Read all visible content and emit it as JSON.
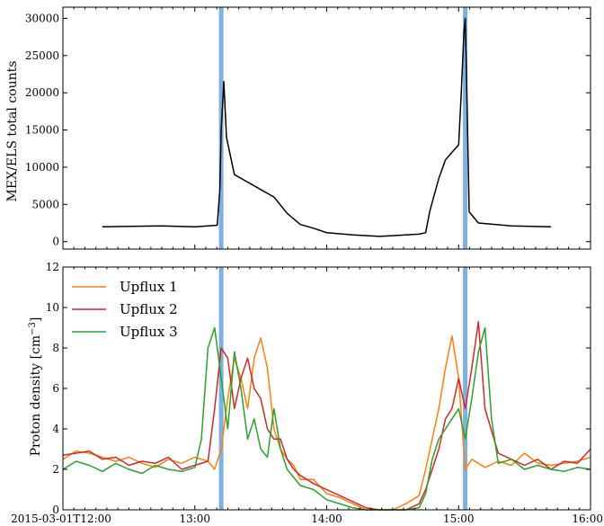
{
  "chart_data": [
    {
      "type": "line",
      "ylabel": "MEX/ELS total counts",
      "ylim": [
        -1000,
        31500
      ],
      "yticks": [
        0,
        5000,
        10000,
        15000,
        20000,
        25000,
        30000
      ],
      "xlim_hours": [
        12.0,
        16.0
      ],
      "highlight_bands_hours": [
        13.2,
        15.05
      ],
      "band_color": "#6fa8dc",
      "line_color": "#000000",
      "series": [
        {
          "x_hours": [
            12.3,
            12.5,
            12.75,
            13.0,
            13.1,
            13.17,
            13.19,
            13.2,
            13.22,
            13.24,
            13.3,
            13.4,
            13.5,
            13.6,
            13.7,
            13.8,
            13.9,
            14.0,
            14.2,
            14.4,
            14.5,
            14.6,
            14.7,
            14.75,
            14.78,
            14.85,
            14.9,
            14.95,
            15.0,
            15.02,
            15.04,
            15.05,
            15.06,
            15.08,
            15.15,
            15.4,
            15.7
          ],
          "values": [
            2000,
            2050,
            2100,
            2000,
            2100,
            2200,
            7000,
            15000,
            21500,
            14000,
            9000,
            8000,
            7000,
            6000,
            3800,
            2300,
            1800,
            1200,
            900,
            700,
            800,
            900,
            1000,
            1200,
            4000,
            8500,
            11000,
            12000,
            13000,
            20000,
            28000,
            30000,
            22000,
            4000,
            2500,
            2100,
            2000
          ]
        }
      ]
    },
    {
      "type": "line",
      "ylabel": "Proton density [cm$^{-3}$]",
      "ylim": [
        0,
        12
      ],
      "yticks": [
        0,
        2,
        4,
        6,
        8,
        10,
        12
      ],
      "xlim_hours": [
        12.0,
        16.0
      ],
      "x_tick_labels": [
        "2015-03-01T12:00",
        "13:00",
        "14:00",
        "15:00",
        "16:00"
      ],
      "highlight_bands_hours": [
        13.2,
        15.05
      ],
      "band_color": "#6fa8dc",
      "legend_position": "top-left",
      "series": [
        {
          "name": "Upflux 1",
          "color": "#ff7f0e",
          "x_hours": [
            12.0,
            12.1,
            12.2,
            12.3,
            12.4,
            12.5,
            12.6,
            12.7,
            12.8,
            12.9,
            13.0,
            13.1,
            13.15,
            13.2,
            13.25,
            13.3,
            13.35,
            13.4,
            13.45,
            13.5,
            13.55,
            13.6,
            13.65,
            13.7,
            13.75,
            13.8,
            13.9,
            14.0,
            14.1,
            14.2,
            14.3,
            14.4,
            14.5,
            14.6,
            14.7,
            14.75,
            14.8,
            14.85,
            14.9,
            14.95,
            15.0,
            15.05,
            15.1,
            15.2,
            15.3,
            15.4,
            15.5,
            15.6,
            15.7,
            15.8,
            15.9,
            16.0
          ],
          "values": [
            2.5,
            2.9,
            2.8,
            2.6,
            2.4,
            2.6,
            2.3,
            2.1,
            2.5,
            2.3,
            2.6,
            2.4,
            2.0,
            3.0,
            5.5,
            7.5,
            6.5,
            5.0,
            7.5,
            8.5,
            7.0,
            4.0,
            3.0,
            2.5,
            2.2,
            1.5,
            1.5,
            0.8,
            0.6,
            0.3,
            0.0,
            0.0,
            0.0,
            0.3,
            0.7,
            2.0,
            3.5,
            5.0,
            7.0,
            8.6,
            6.5,
            2.0,
            2.5,
            2.1,
            2.4,
            2.2,
            2.8,
            2.3,
            2.2,
            2.3,
            2.4,
            2.6
          ]
        },
        {
          "name": "Upflux 2",
          "color": "#d62728",
          "x_hours": [
            12.0,
            12.1,
            12.2,
            12.3,
            12.4,
            12.5,
            12.6,
            12.7,
            12.8,
            12.9,
            13.0,
            13.1,
            13.15,
            13.2,
            13.25,
            13.3,
            13.35,
            13.4,
            13.45,
            13.5,
            13.55,
            13.6,
            13.65,
            13.7,
            13.75,
            13.8,
            13.9,
            14.0,
            14.1,
            14.2,
            14.3,
            14.4,
            14.5,
            14.6,
            14.7,
            14.75,
            14.8,
            14.85,
            14.9,
            14.95,
            15.0,
            15.05,
            15.1,
            15.15,
            15.2,
            15.3,
            15.4,
            15.5,
            15.6,
            15.7,
            15.8,
            15.9,
            16.0
          ],
          "values": [
            2.7,
            2.8,
            2.9,
            2.5,
            2.6,
            2.2,
            2.4,
            2.3,
            2.6,
            2.0,
            2.2,
            2.4,
            5.0,
            8.0,
            7.5,
            5.0,
            6.5,
            7.5,
            6.0,
            5.5,
            4.0,
            3.5,
            3.5,
            2.5,
            2.0,
            1.7,
            1.3,
            1.0,
            0.7,
            0.4,
            0.1,
            0.0,
            0.0,
            0.0,
            0.3,
            1.0,
            2.0,
            3.0,
            4.5,
            5.0,
            6.5,
            5.0,
            7.0,
            9.3,
            5.0,
            2.8,
            2.5,
            2.2,
            2.5,
            2.0,
            2.4,
            2.3,
            3.0
          ]
        },
        {
          "name": "Upflux 3",
          "color": "#2ca02c",
          "x_hours": [
            12.0,
            12.1,
            12.2,
            12.3,
            12.4,
            12.5,
            12.6,
            12.7,
            12.8,
            12.9,
            13.0,
            13.05,
            13.1,
            13.15,
            13.2,
            13.25,
            13.3,
            13.35,
            13.4,
            13.45,
            13.5,
            13.55,
            13.6,
            13.65,
            13.7,
            13.75,
            13.8,
            13.9,
            14.0,
            14.1,
            14.2,
            14.3,
            14.4,
            14.5,
            14.6,
            14.7,
            14.75,
            14.8,
            14.85,
            14.9,
            14.95,
            15.0,
            15.05,
            15.1,
            15.15,
            15.2,
            15.25,
            15.3,
            15.4,
            15.5,
            15.6,
            15.7,
            15.8,
            15.9,
            16.0
          ],
          "values": [
            2.0,
            2.4,
            2.2,
            1.9,
            2.3,
            2.0,
            1.8,
            2.2,
            2.0,
            1.9,
            2.1,
            3.5,
            8.0,
            9.0,
            6.5,
            4.0,
            7.8,
            6.0,
            3.5,
            4.5,
            3.0,
            2.6,
            5.0,
            3.0,
            2.0,
            1.6,
            1.2,
            1.0,
            0.5,
            0.3,
            0.1,
            0.0,
            0.0,
            0.0,
            0.0,
            0.1,
            0.8,
            2.5,
            3.5,
            4.0,
            4.5,
            5.0,
            3.5,
            5.5,
            7.8,
            9.0,
            4.5,
            2.3,
            2.5,
            2.0,
            2.2,
            2.0,
            1.9,
            2.1,
            2.0
          ]
        }
      ]
    }
  ]
}
